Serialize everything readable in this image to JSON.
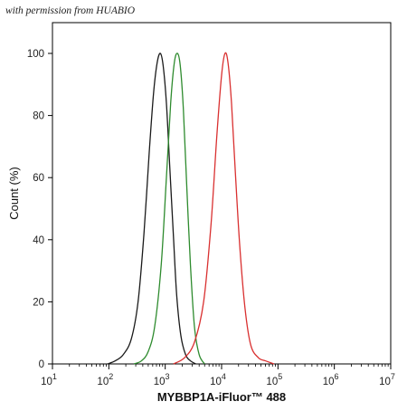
{
  "watermark": "with permission from HUABIO",
  "chart_data": {
    "type": "line",
    "xlabel": "MYBBP1A-iFluor™ 488",
    "ylabel": "Count (%)",
    "xscale": "log",
    "xlim": [
      10,
      10000000
    ],
    "ylim": [
      0,
      100
    ],
    "x_ticks": [
      {
        "base": "10",
        "exp": "1"
      },
      {
        "base": "10",
        "exp": "2"
      },
      {
        "base": "10",
        "exp": "3"
      },
      {
        "base": "10",
        "exp": "4"
      },
      {
        "base": "10",
        "exp": "5"
      },
      {
        "base": "10",
        "exp": "6"
      },
      {
        "base": "10",
        "exp": "7"
      }
    ],
    "y_ticks": [
      "0",
      "20",
      "40",
      "60",
      "80",
      "100"
    ],
    "series": [
      {
        "color": "#1a1a1a",
        "x": [
          95,
          130,
          180,
          250,
          330,
          420,
          520,
          620,
          720,
          820,
          920,
          1050,
          1200,
          1400,
          1600,
          1900,
          2300,
          2800,
          3500
        ],
        "y": [
          0,
          1,
          3,
          8,
          20,
          42,
          68,
          87,
          97,
          100,
          96,
          84,
          64,
          41,
          22,
          9,
          3,
          1,
          0
        ]
      },
      {
        "color": "#2e8b2e",
        "x": [
          280,
          380,
          500,
          650,
          850,
          1050,
          1250,
          1450,
          1650,
          1850,
          2100,
          2400,
          2800,
          3300,
          4000,
          5000
        ],
        "y": [
          0,
          1,
          4,
          12,
          32,
          60,
          84,
          97,
          100,
          96,
          82,
          58,
          32,
          12,
          3,
          0
        ]
      },
      {
        "color": "#d93030",
        "x": [
          1400,
          2200,
          3300,
          4800,
          6500,
          8200,
          10000,
          11500,
          13000,
          15000,
          17500,
          21000,
          26000,
          33000,
          45000,
          60000,
          85000
        ],
        "y": [
          0,
          2,
          7,
          20,
          45,
          73,
          93,
          100,
          97,
          84,
          62,
          38,
          18,
          6,
          2,
          1,
          0
        ]
      }
    ]
  }
}
